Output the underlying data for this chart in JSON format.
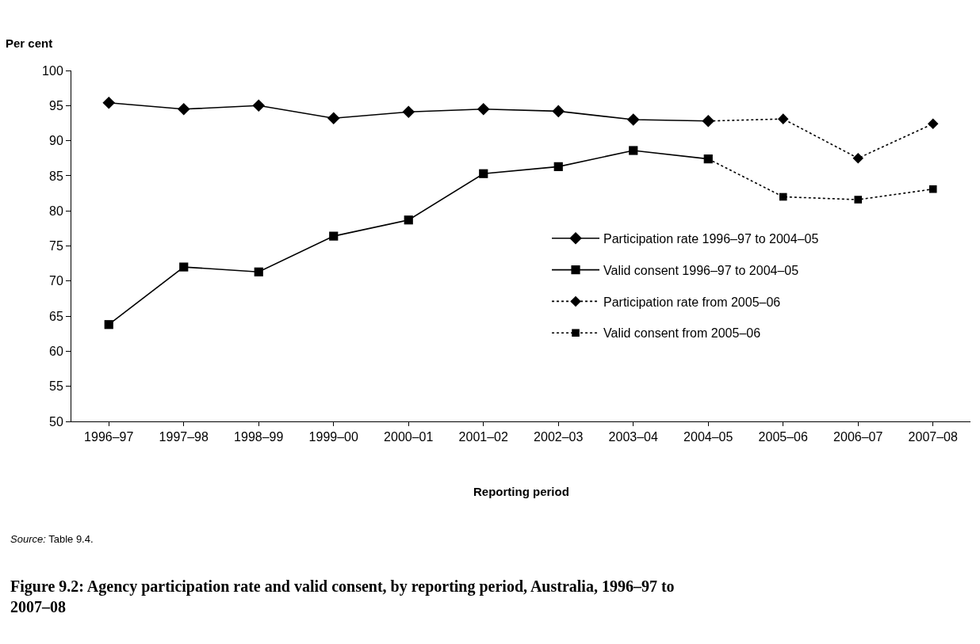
{
  "chart_data": {
    "type": "line",
    "title": "Figure 9.2: Agency participation rate and valid consent, by reporting period, Australia, 1996–97 to 2007–08",
    "ylabel": "Per cent",
    "xlabel": "Reporting period",
    "categories": [
      "1996–97",
      "1997–98",
      "1998–99",
      "1999–00",
      "2000–01",
      "2001–02",
      "2002–03",
      "2003–04",
      "2004–05",
      "2005–06",
      "2006–07",
      "2007–08"
    ],
    "series": [
      {
        "name": "Participation rate 1996–97 to 2004–05",
        "color": "#000000",
        "marker": "diamond",
        "line_style": "solid",
        "values": [
          95.4,
          94.5,
          95.0,
          93.2,
          94.1,
          94.5,
          94.2,
          93.0,
          92.8,
          null,
          null,
          null
        ]
      },
      {
        "name": "Valid consent 1996–97 to 2004–05",
        "color": "#000000",
        "marker": "square",
        "line_style": "solid",
        "values": [
          63.8,
          72.0,
          71.3,
          76.4,
          78.7,
          85.3,
          86.3,
          88.6,
          87.4,
          null,
          null,
          null
        ]
      },
      {
        "name": "Participation rate from 2005–06",
        "color": "#000000",
        "marker": "diamond",
        "line_style": "dotted",
        "values": [
          null,
          null,
          null,
          null,
          null,
          null,
          null,
          null,
          92.8,
          93.1,
          87.5,
          92.4
        ]
      },
      {
        "name": "Valid consent from 2005–06",
        "color": "#000000",
        "marker": "square",
        "line_style": "dotted",
        "values": [
          null,
          null,
          null,
          null,
          null,
          null,
          null,
          null,
          87.4,
          82.0,
          81.6,
          83.1
        ]
      }
    ],
    "ylim": [
      50,
      100
    ],
    "yticks": [
      50,
      55,
      60,
      65,
      70,
      75,
      80,
      85,
      90,
      95,
      100
    ],
    "grid": false,
    "legend": "center right",
    "annotations": [
      "Source: Table 9.4."
    ]
  }
}
